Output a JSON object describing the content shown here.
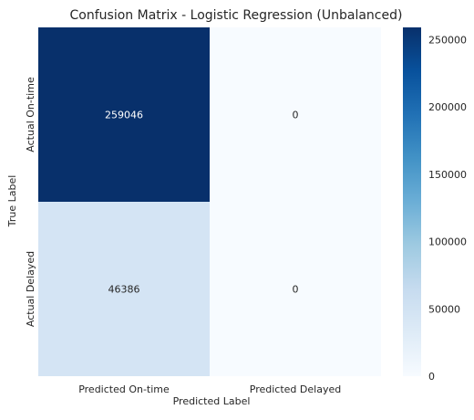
{
  "chart_data": {
    "type": "heatmap",
    "title": "Confusion Matrix - Logistic Regression (Unbalanced)",
    "xlabel": "Predicted Label",
    "ylabel": "True Label",
    "x_categories": [
      "Predicted On-time",
      "Predicted Delayed"
    ],
    "y_categories": [
      "Actual On-time",
      "Actual Delayed"
    ],
    "values": [
      [
        259046,
        0
      ],
      [
        46386,
        0
      ]
    ],
    "cell_labels": [
      [
        "259046",
        "0"
      ],
      [
        "46386",
        "0"
      ]
    ],
    "colormap": "Blues",
    "colorbar": {
      "range": [
        0,
        259046
      ],
      "ticks": [
        0,
        50000,
        100000,
        150000,
        200000,
        250000
      ],
      "tick_labels": [
        "0",
        "50000",
        "100000",
        "150000",
        "200000",
        "250000"
      ]
    },
    "colors": {
      "low": "#f7fbff",
      "high": "#08306b",
      "text_dark": "#262626",
      "text_light": "#ffffff"
    }
  }
}
